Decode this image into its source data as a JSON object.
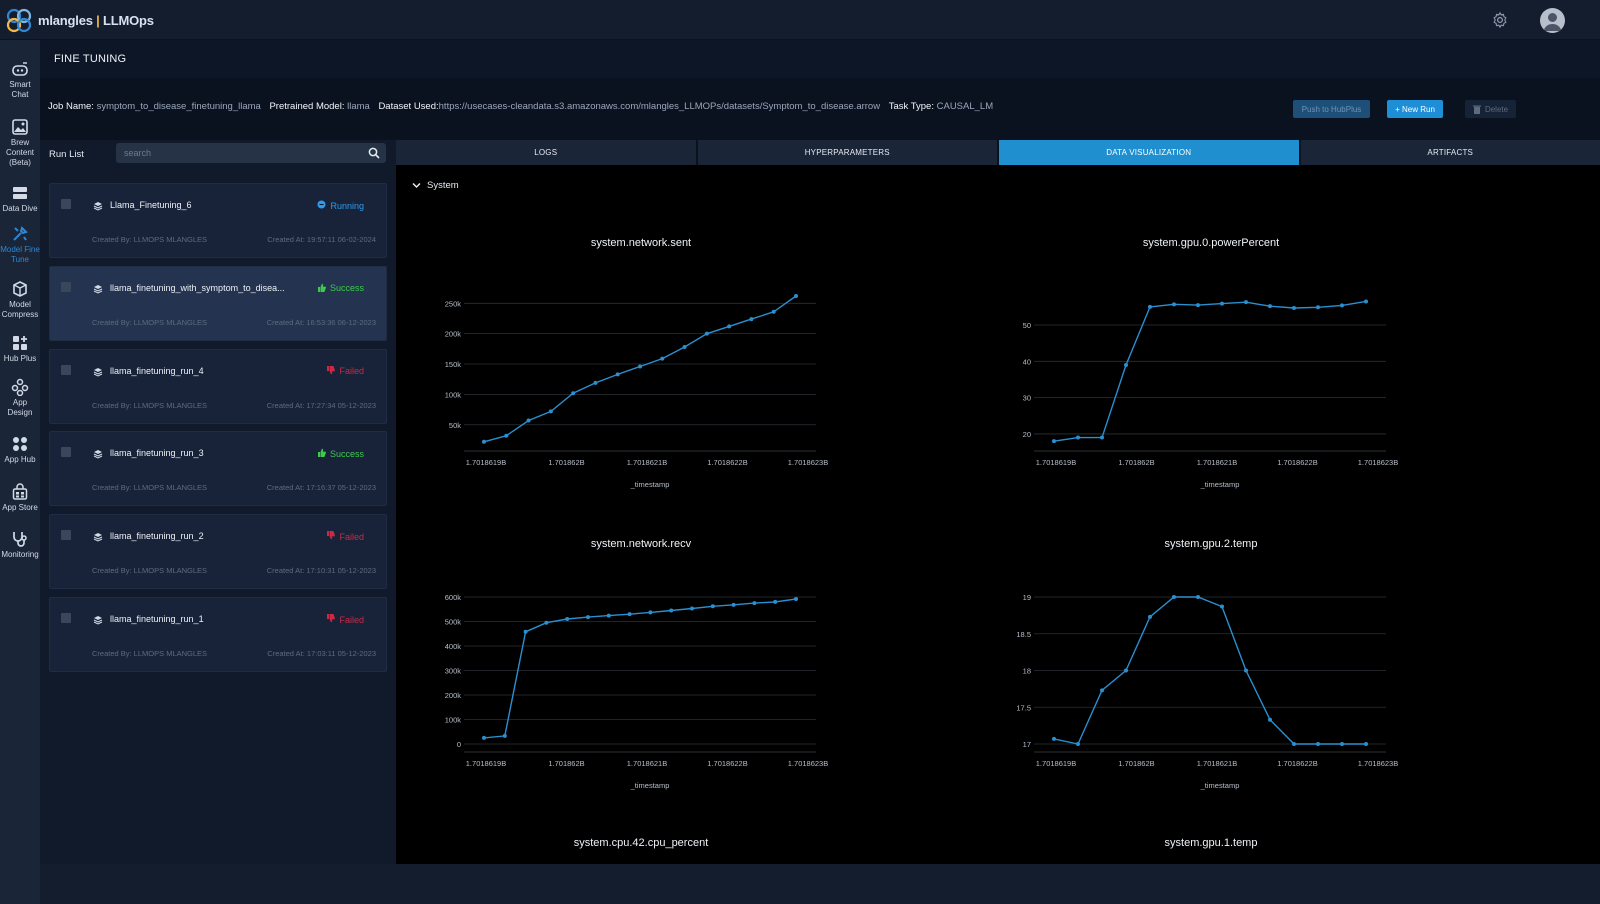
{
  "app": {
    "logo_prefix": "mlangles",
    "logo_sep": " | ",
    "logo_suffix": "LLMOps"
  },
  "sidebar": {
    "items": [
      {
        "label": "Smart Chat",
        "icon": "chat-bot-icon"
      },
      {
        "label": "Brew Content (Beta)",
        "icon": "image-icon"
      },
      {
        "label": "Data Dive",
        "icon": "database-icon"
      },
      {
        "label": "Model Fine Tune",
        "icon": "tools-icon",
        "active": true
      },
      {
        "label": "Model Compress",
        "icon": "cube-icon"
      },
      {
        "label": "Hub Plus",
        "icon": "grid-plus-icon"
      },
      {
        "label": "App Design",
        "icon": "app-design-icon"
      },
      {
        "label": "App Hub",
        "icon": "app-hub-icon"
      },
      {
        "label": "App Store",
        "icon": "store-icon"
      },
      {
        "label": "Monitoring",
        "icon": "stethoscope-icon"
      }
    ]
  },
  "header": {
    "title": "FINE TUNING"
  },
  "job": {
    "job_name_label": "Job Name:",
    "job_name": "symptom_to_disease_finetuning_llama",
    "model_label": "Pretrained Model:",
    "model": "llama",
    "dataset_label": "Dataset Used:",
    "dataset": "https://usecases-cleandata.s3.amazonaws.com/mlangles_LLMOPs/datasets/Symptom_to_disease.arrow",
    "task_label": "Task Type:",
    "task": "CAUSAL_LM"
  },
  "actions": {
    "push": "Push to HubPlus",
    "new_run": "+ New Run",
    "delete": "Delete"
  },
  "runlist": {
    "label": "Run List",
    "search_placeholder": "search",
    "runs": [
      {
        "name": "Llama_Finetuning_6",
        "status": "Running",
        "status_type": "running",
        "created_by": "Created By: LLMOPS MLANGLES",
        "created_at": "Created At: 19:57:11 06-02-2024"
      },
      {
        "name": "llama_finetuning_with_symptom_to_disea...",
        "status": "Success",
        "status_type": "success",
        "created_by": "Created By: LLMOPS MLANGLES",
        "created_at": "Created At: 16:53:36 06-12-2023",
        "selected": true
      },
      {
        "name": "llama_finetuning_run_4",
        "status": "Failed",
        "status_type": "failed",
        "created_by": "Created By: LLMOPS MLANGLES",
        "created_at": "Created At: 17:27:34 05-12-2023"
      },
      {
        "name": "llama_finetuning_run_3",
        "status": "Success",
        "status_type": "success",
        "created_by": "Created By: LLMOPS MLANGLES",
        "created_at": "Created At: 17:16:37 05-12-2023"
      },
      {
        "name": "llama_finetuning_run_2",
        "status": "Failed",
        "status_type": "failed",
        "created_by": "Created By: LLMOPS MLANGLES",
        "created_at": "Created At: 17:10:31 05-12-2023"
      },
      {
        "name": "llama_finetuning_run_1",
        "status": "Failed",
        "status_type": "failed",
        "created_by": "Created By: LLMOPS MLANGLES",
        "created_at": "Created At: 17:03:11 05-12-2023"
      }
    ]
  },
  "tabs": [
    {
      "label": "LOGS"
    },
    {
      "label": "HYPERPARAMETERS"
    },
    {
      "label": "DATA VISUALIZATION",
      "active": true
    },
    {
      "label": "ARTIFACTS"
    }
  ],
  "section": {
    "label": "System"
  },
  "colors": {
    "line": "#2a8fd1",
    "accent": "#1f8fcf"
  },
  "chart_data": [
    {
      "type": "line",
      "title": "system.network.sent",
      "xlabel": "_timestamp",
      "x_ticks": [
        "1.7018619B",
        "1.701862B",
        "1.7018621B",
        "1.7018622B",
        "1.7018623B"
      ],
      "y_ticks": [
        50000,
        100000,
        150000,
        200000,
        250000
      ],
      "y_tick_labels": [
        "50k",
        "100k",
        "150k",
        "200k",
        "250k"
      ],
      "ylim": [
        20000,
        262000
      ],
      "y": [
        22000,
        32000,
        57000,
        72000,
        102000,
        119000,
        133000,
        146000,
        159000,
        178000,
        200000,
        212000,
        224000,
        236000,
        262000
      ]
    },
    {
      "type": "line",
      "title": "system.gpu.0.powerPercent",
      "xlabel": "_timestamp",
      "x_ticks": [
        "1.7018619B",
        "1.701862B",
        "1.7018621B",
        "1.7018622B",
        "1.7018623B"
      ],
      "y_ticks": [
        20,
        30,
        40,
        50
      ],
      "y_tick_labels": [
        "20",
        "30",
        "40",
        "50"
      ],
      "ylim": [
        17.5,
        58
      ],
      "y": [
        18,
        19,
        19,
        39,
        55,
        55.7,
        55.5,
        55.9,
        56.3,
        55.2,
        54.7,
        54.9,
        55.4,
        56.5
      ]
    },
    {
      "type": "line",
      "title": "system.network.recv",
      "xlabel": "_timestamp",
      "x_ticks": [
        "1.7018619B",
        "1.701862B",
        "1.7018621B",
        "1.7018622B",
        "1.7018623B"
      ],
      "y_ticks": [
        0,
        100000,
        200000,
        300000,
        400000,
        500000,
        600000
      ],
      "y_tick_labels": [
        "0",
        "100k",
        "200k",
        "300k",
        "400k",
        "500k",
        "600k"
      ],
      "ylim": [
        0,
        600000
      ],
      "y": [
        25000,
        33000,
        458000,
        495000,
        510000,
        518000,
        524000,
        530000,
        537000,
        545000,
        553000,
        562000,
        568000,
        575000,
        580000,
        592000
      ]
    },
    {
      "type": "line",
      "title": "system.gpu.2.temp",
      "xlabel": "_timestamp",
      "x_ticks": [
        "1.7018619B",
        "1.701862B",
        "1.7018621B",
        "1.7018622B",
        "1.7018623B"
      ],
      "y_ticks": [
        17,
        17.5,
        18,
        18.5,
        19
      ],
      "y_tick_labels": [
        "17",
        "17.5",
        "18",
        "18.5",
        "19"
      ],
      "ylim": [
        17,
        19
      ],
      "y": [
        17.07,
        17,
        17.73,
        18,
        18.73,
        19,
        19,
        18.87,
        18,
        17.33,
        17,
        17,
        17,
        17
      ]
    }
  ],
  "partial_titles": [
    "system.cpu.42.cpu_percent",
    "system.gpu.1.temp"
  ]
}
